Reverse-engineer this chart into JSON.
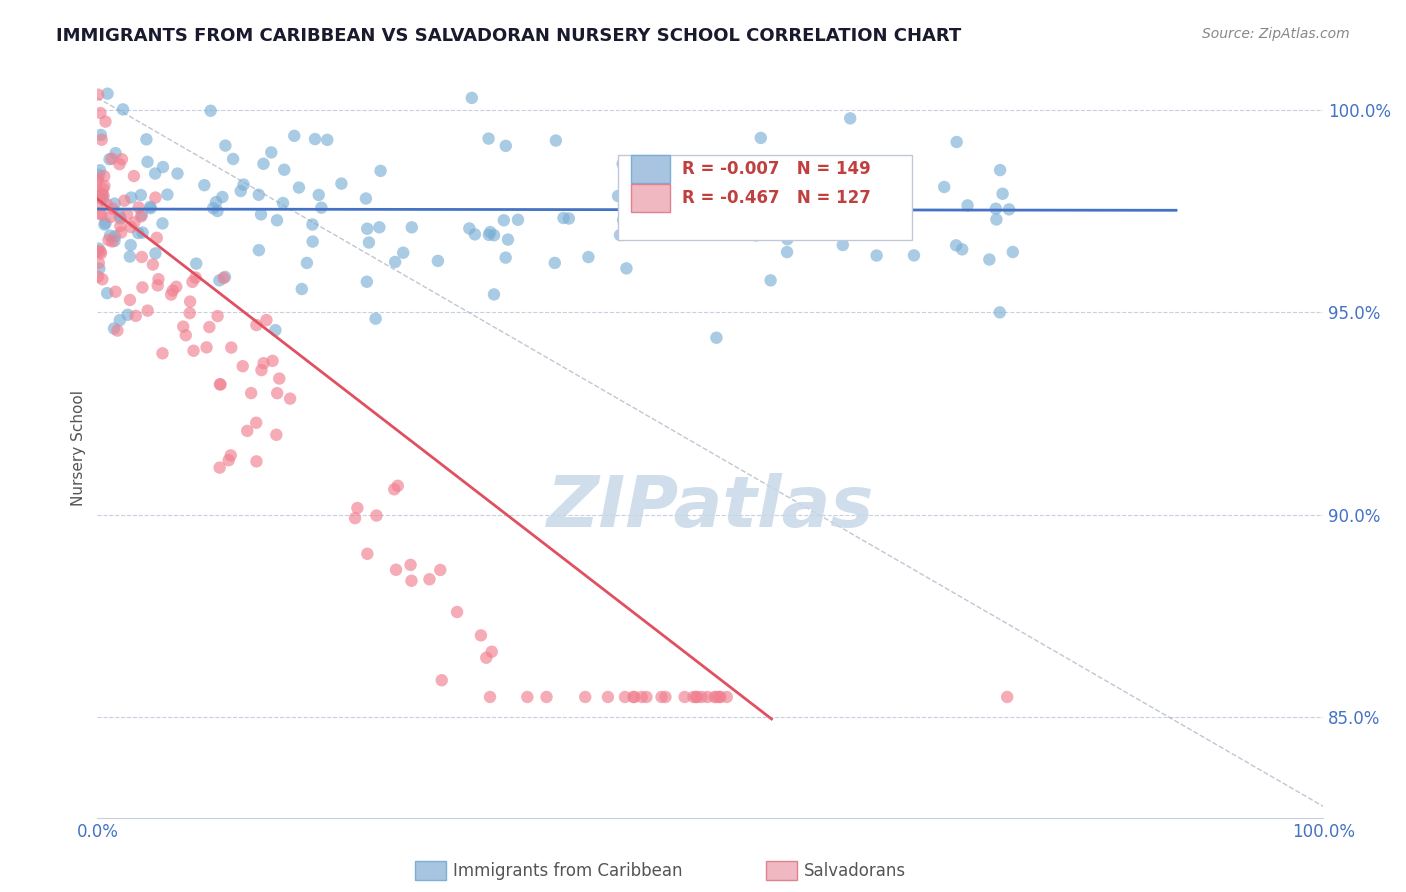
{
  "title": "IMMIGRANTS FROM CARIBBEAN VS SALVADORAN NURSERY SCHOOL CORRELATION CHART",
  "source": "Source: ZipAtlas.com",
  "ylabel": "Nursery School",
  "xlim": [
    0.0,
    1.0
  ],
  "ylim": [
    0.825,
    1.008
  ],
  "yticks": [
    0.85,
    0.9,
    0.95,
    1.0
  ],
  "ytick_labels": [
    "85.0%",
    "90.0%",
    "95.0%",
    "100.0%"
  ],
  "blue_series_label": "Immigrants from Caribbean",
  "pink_series_label": "Salvadorans",
  "blue_color": "#7bafd4",
  "pink_color": "#f08090",
  "blue_trend_color": "#4472c4",
  "pink_trend_color": "#e05060",
  "diag_line_color": "#b0b8c8",
  "watermark": "ZIPatlas",
  "watermark_color": "#c8d8e8",
  "title_color": "#1a1a2e",
  "tick_label_color": "#4472c4",
  "grid_color": "#c8d0e0",
  "blue_R": -0.007,
  "blue_N": 149,
  "pink_R": -0.467,
  "pink_N": 127
}
